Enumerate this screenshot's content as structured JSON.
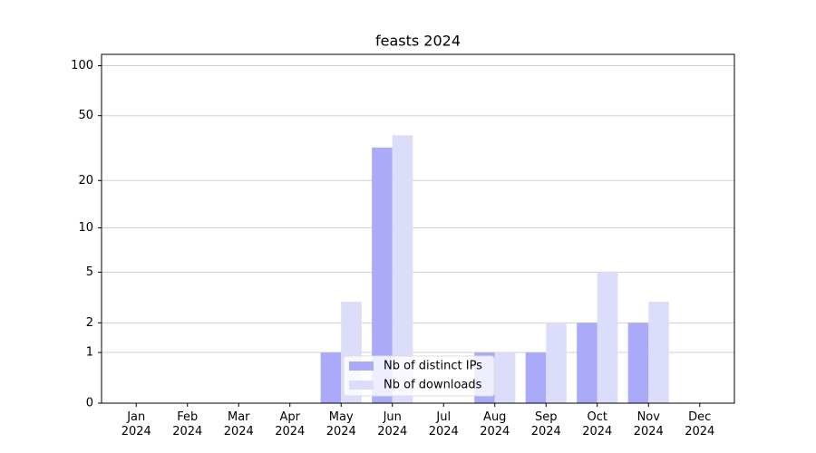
{
  "chart_data": {
    "type": "bar",
    "title": "feasts 2024",
    "categories": [
      "Jan 2024",
      "Feb 2024",
      "Mar 2024",
      "Apr 2024",
      "May 2024",
      "Jun 2024",
      "Jul 2024",
      "Aug 2024",
      "Sep 2024",
      "Oct 2024",
      "Nov 2024",
      "Dec 2024"
    ],
    "series": [
      {
        "name": "Nb of distinct IPs",
        "color": "#aaaaf9",
        "values": [
          0,
          0,
          0,
          0,
          1,
          32,
          0,
          1,
          1,
          2,
          2,
          0
        ]
      },
      {
        "name": "Nb of downloads",
        "color": "#dcdcfb",
        "values": [
          0,
          0,
          0,
          0,
          3,
          38,
          0,
          1,
          2,
          5,
          3,
          0
        ]
      }
    ],
    "y_scale": "symlog",
    "ylim": [
      0,
      117
    ],
    "yticks": [
      0,
      1,
      2,
      5,
      10,
      20,
      50,
      100
    ],
    "grid": true,
    "legend": "lower center"
  }
}
